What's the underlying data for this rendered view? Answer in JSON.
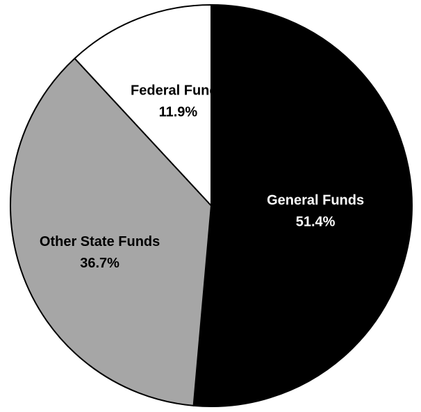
{
  "chart_data": {
    "type": "pie",
    "title": "",
    "start_angle_deg": 0,
    "direction": "clockwise",
    "slices": [
      {
        "label": "General Funds",
        "value": 51.4,
        "value_label": "51.4%",
        "color": "#000000",
        "label_color": "#ffffff"
      },
      {
        "label": "Other State Funds",
        "value": 36.7,
        "value_label": "36.7%",
        "color": "#a6a6a6",
        "label_color": "#000000"
      },
      {
        "label": "Federal Funds",
        "value": 11.9,
        "value_label": "11.9%",
        "color": "#ffffff",
        "label_color": "#000000"
      }
    ]
  }
}
